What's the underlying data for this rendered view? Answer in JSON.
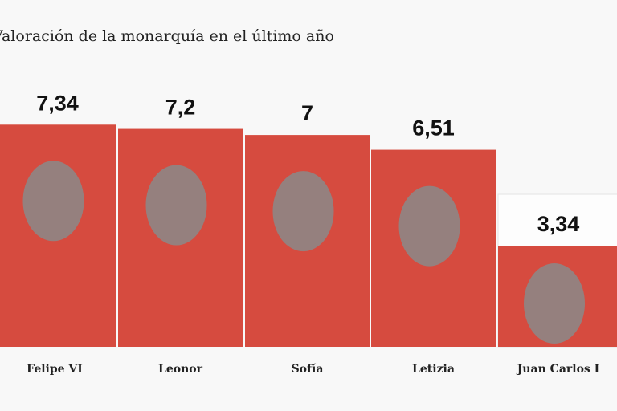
{
  "chart_data": {
    "type": "bar",
    "title": "Valoración de la monarquía en el último año",
    "categories": [
      "Felipe VI",
      "Leonor",
      "Sofía",
      "Letizia",
      "Juan Carlos I"
    ],
    "values": [
      7.34,
      7.2,
      7,
      6.51,
      3.34
    ],
    "value_labels": [
      "7,34",
      "7,2",
      "7",
      "6,51",
      "3,34"
    ],
    "xlabel": "",
    "ylabel": "",
    "ylim": [
      0,
      10
    ],
    "grid": false,
    "colors": {
      "bar": "#d64b3f",
      "face": "#8a8a8a"
    }
  }
}
